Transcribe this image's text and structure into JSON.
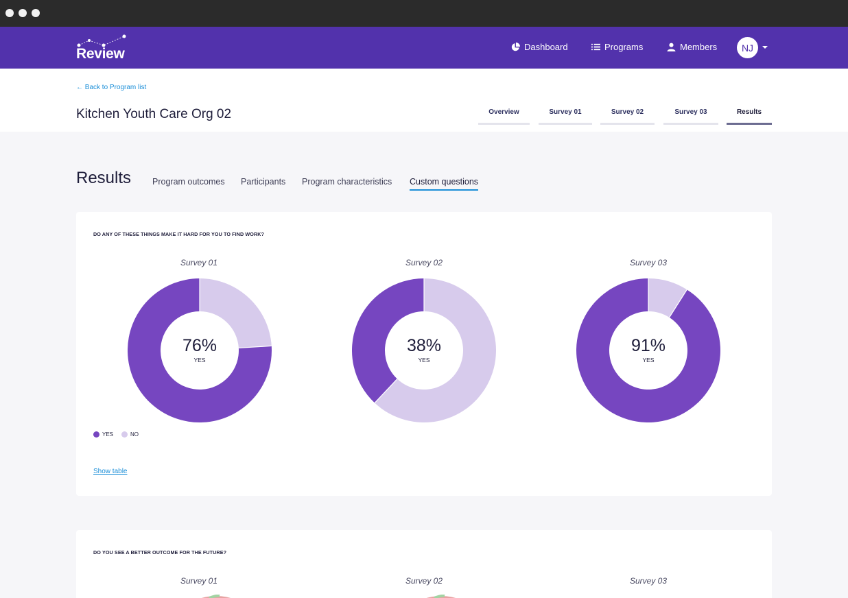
{
  "brand": {
    "name": "Review"
  },
  "nav": {
    "items": [
      {
        "label": "Dashboard",
        "icon": "pie-chart-icon"
      },
      {
        "label": "Programs",
        "icon": "list-icon"
      },
      {
        "label": "Members",
        "icon": "user-icon"
      }
    ],
    "avatar_initials": "NJ"
  },
  "header": {
    "back_link": "← Back to Program list",
    "title": "Kitchen Youth Care Org 02",
    "tabs": [
      {
        "label": "Overview",
        "active": false
      },
      {
        "label": "Survey 01",
        "active": false
      },
      {
        "label": "Survey 02",
        "active": false
      },
      {
        "label": "Survey 03",
        "active": false
      },
      {
        "label": "Results",
        "active": true
      }
    ]
  },
  "results": {
    "title": "Results",
    "subtabs": [
      {
        "label": "Program outcomes",
        "active": false
      },
      {
        "label": "Participants",
        "active": false
      },
      {
        "label": "Program characteristics",
        "active": false
      },
      {
        "label": "Custom questions",
        "active": true
      }
    ]
  },
  "colors": {
    "brand": "#5232ac",
    "yes": "#7646c0",
    "no": "#d7cbec",
    "link": "#1a8ed8"
  },
  "cards": [
    {
      "question": "DO ANY OF THESE THINGS MAKE IT HARD FOR YOU TO FIND WORK?",
      "legend": {
        "yes": "YES",
        "no": "NO"
      },
      "show_table": "Show table",
      "charts": [
        {
          "survey": "Survey 01",
          "pct_text": "76%",
          "center_label": "YES"
        },
        {
          "survey": "Survey 02",
          "pct_text": "38%",
          "center_label": "YES"
        },
        {
          "survey": "Survey 03",
          "pct_text": "91%",
          "center_label": "YES"
        }
      ]
    },
    {
      "question": "DO YOU SEE A BETTER OUTCOME FOR THE FUTURE?",
      "charts": [
        {
          "survey": "Survey 01"
        },
        {
          "survey": "Survey 02"
        },
        {
          "survey": "Survey 03"
        }
      ]
    }
  ],
  "chart_data": [
    {
      "type": "pie",
      "title": "DO ANY OF THESE THINGS MAKE IT HARD FOR YOU TO FIND WORK?",
      "categories": [
        "YES",
        "NO"
      ],
      "series": [
        {
          "name": "Survey 01",
          "values": [
            76,
            24
          ]
        },
        {
          "name": "Survey 02",
          "values": [
            38,
            62
          ]
        },
        {
          "name": "Survey 03",
          "values": [
            91,
            9
          ]
        }
      ],
      "legend": "bottom-left"
    }
  ]
}
